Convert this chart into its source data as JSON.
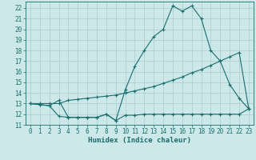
{
  "title": "",
  "xlabel": "Humidex (Indice chaleur)",
  "bg_color": "#cce8e8",
  "line_color": "#1a6e6e",
  "grid_color": "#aacccc",
  "xlim": [
    -0.5,
    23.5
  ],
  "ylim": [
    11,
    22.6
  ],
  "yticks": [
    11,
    12,
    13,
    14,
    15,
    16,
    17,
    18,
    19,
    20,
    21,
    22
  ],
  "xticks": [
    0,
    1,
    2,
    3,
    4,
    5,
    6,
    7,
    8,
    9,
    10,
    11,
    12,
    13,
    14,
    15,
    16,
    17,
    18,
    19,
    20,
    21,
    22,
    23
  ],
  "line1_x": [
    0,
    1,
    2,
    3,
    4,
    5,
    6,
    7,
    8,
    9,
    10,
    11,
    12,
    13,
    14,
    15,
    16,
    17,
    18,
    19,
    20,
    21,
    22,
    23
  ],
  "line1_y": [
    13.0,
    12.9,
    12.8,
    11.8,
    11.7,
    11.7,
    11.7,
    11.7,
    12.0,
    11.4,
    11.9,
    11.9,
    12.0,
    12.0,
    12.0,
    12.0,
    12.0,
    12.0,
    12.0,
    12.0,
    12.0,
    12.0,
    12.0,
    12.5
  ],
  "line2_x": [
    0,
    1,
    2,
    3,
    4,
    5,
    6,
    7,
    8,
    9,
    10,
    11,
    12,
    13,
    14,
    15,
    16,
    17,
    18,
    19,
    20,
    21,
    22,
    23
  ],
  "line2_y": [
    13.0,
    13.0,
    13.0,
    13.0,
    13.3,
    13.4,
    13.5,
    13.6,
    13.7,
    13.8,
    14.0,
    14.2,
    14.4,
    14.6,
    14.9,
    15.2,
    15.5,
    15.9,
    16.2,
    16.6,
    17.0,
    17.4,
    17.8,
    12.5
  ],
  "line3_x": [
    0,
    1,
    2,
    3,
    4,
    5,
    6,
    7,
    8,
    9,
    10,
    11,
    12,
    13,
    14,
    15,
    16,
    17,
    18,
    19,
    20,
    21,
    22,
    23
  ],
  "line3_y": [
    13.0,
    12.9,
    12.8,
    13.3,
    11.7,
    11.7,
    11.7,
    11.7,
    12.0,
    11.4,
    14.3,
    16.5,
    18.0,
    19.3,
    20.0,
    22.2,
    21.7,
    22.2,
    21.0,
    18.0,
    17.0,
    14.8,
    13.5,
    12.5
  ],
  "label_fontsize": 6.5,
  "tick_fontsize": 5.5
}
